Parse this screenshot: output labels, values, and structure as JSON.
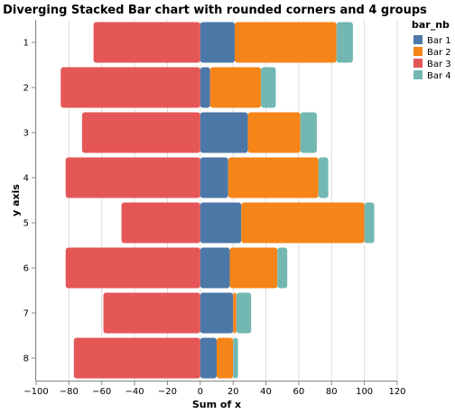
{
  "chart_data": {
    "type": "bar",
    "orientation": "horizontal",
    "stacked": true,
    "diverging": true,
    "title": "Diverging Stacked Bar chart with rounded corners and 4 groups",
    "xlabel": "Sum of x",
    "ylabel": "y axis",
    "xlim": [
      -100,
      120
    ],
    "xticks": [
      -100,
      -80,
      -60,
      -40,
      -20,
      0,
      20,
      40,
      60,
      80,
      100,
      120
    ],
    "grid": true,
    "legend_title": "bar_nb",
    "legend_position": "top-right",
    "categories": [
      "1",
      "2",
      "3",
      "4",
      "5",
      "6",
      "7",
      "8"
    ],
    "series": [
      {
        "name": "Bar 1",
        "color": "#4c78a8",
        "values": [
          21,
          6,
          29,
          17,
          25,
          18,
          20,
          10
        ]
      },
      {
        "name": "Bar 2",
        "color": "#f58518",
        "values": [
          62,
          31,
          32,
          55,
          75,
          29,
          2,
          10
        ]
      },
      {
        "name": "Bar 3",
        "color": "#e45756",
        "values": [
          -65,
          -85,
          -72,
          -82,
          -48,
          -82,
          -59,
          -77
        ]
      },
      {
        "name": "Bar 4",
        "color": "#72b7b2",
        "values": [
          10,
          9,
          10,
          6,
          6,
          6,
          9,
          3
        ]
      }
    ]
  }
}
